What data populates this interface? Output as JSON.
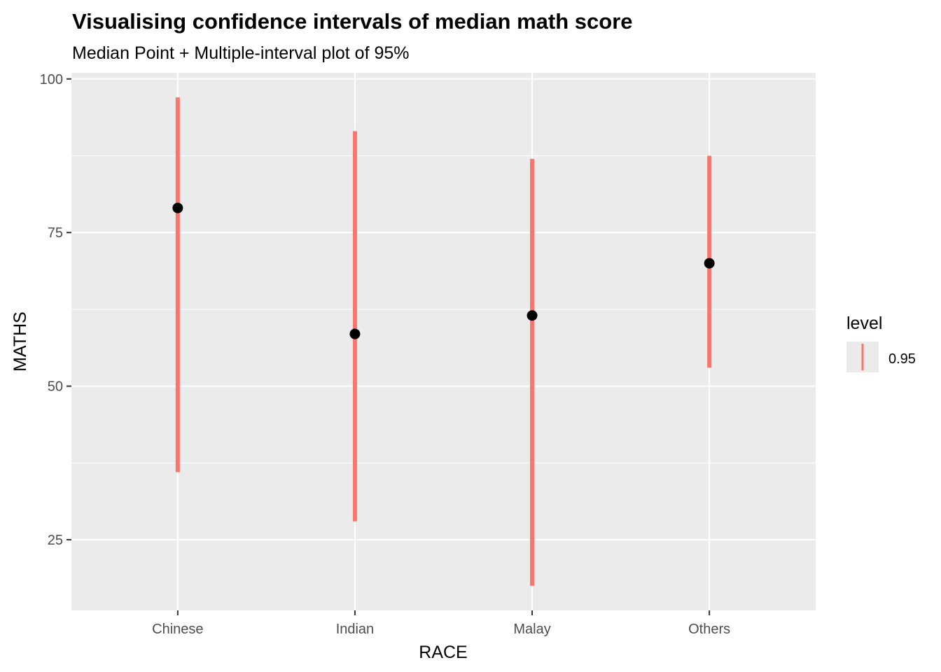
{
  "chart_data": {
    "type": "pointinterval",
    "title": "Visualising confidence intervals of median math score",
    "subtitle": "Median Point + Multiple-interval plot of 95%",
    "xlabel": "RACE",
    "ylabel": "MATHS",
    "categories": [
      "Chinese",
      "Indian",
      "Malay",
      "Others"
    ],
    "medians": [
      79,
      58.5,
      61.5,
      70
    ],
    "intervals": [
      {
        "lower": 36,
        "upper": 97
      },
      {
        "lower": 28,
        "upper": 91.5
      },
      {
        "lower": 17.5,
        "upper": 87
      },
      {
        "lower": 53,
        "upper": 87.5
      }
    ],
    "ylim": [
      13.5,
      101
    ],
    "yticks": [
      25,
      50,
      75,
      100
    ],
    "grid": true,
    "legend": {
      "title": "level",
      "placement": "right",
      "entries": [
        "0.95"
      ]
    },
    "colors": {
      "interval": "#F8766D",
      "point": "#000000",
      "panel": "#EBEBEB",
      "grid": "#FFFFFF"
    }
  }
}
